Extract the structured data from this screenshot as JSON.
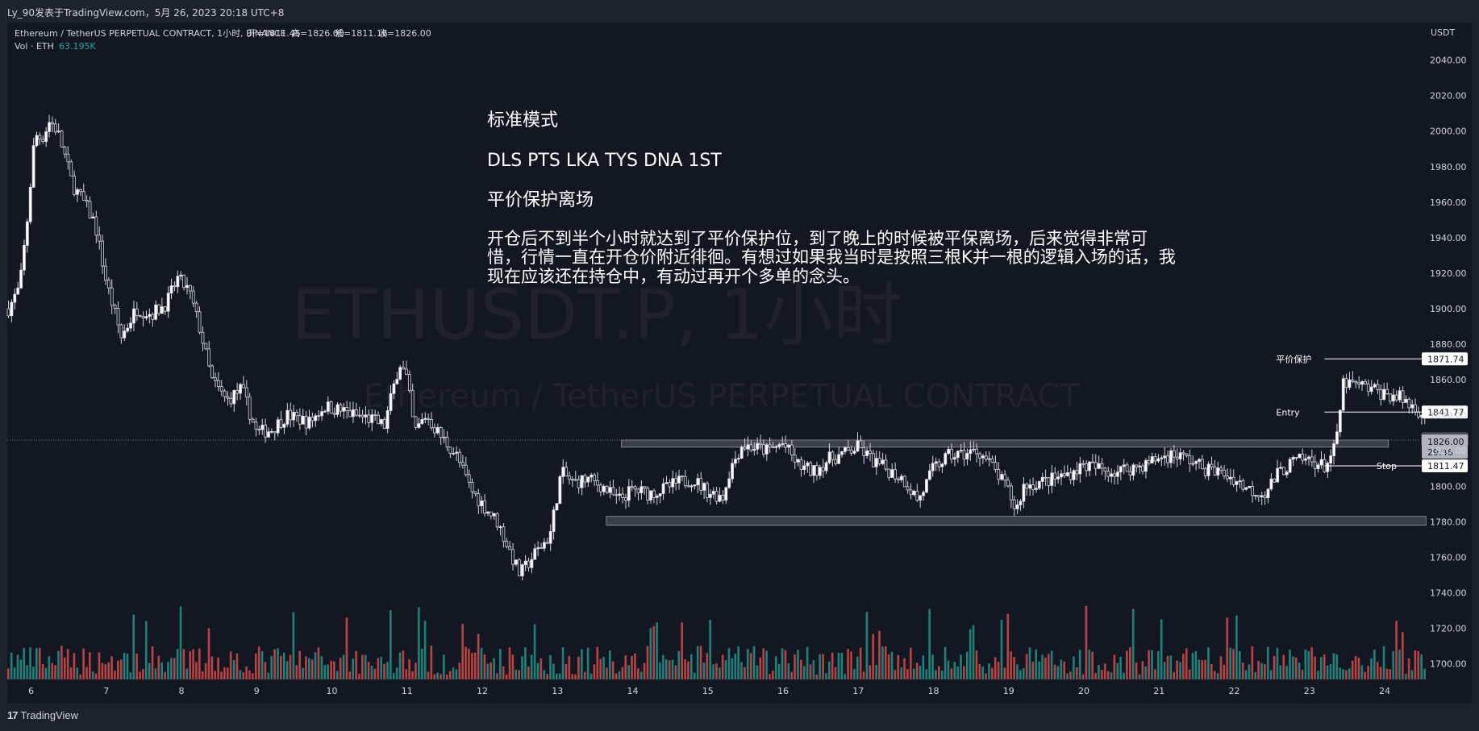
{
  "header": {
    "publisher": "Ly_90发表于TradingView.com，5月 26, 2023 20:18 UTC+8",
    "symbol_desc": "Ethereum / TetherUS PERPETUAL CONTRACT, 1小时, BINANCE",
    "ohlc": [
      {
        "label": "开",
        "value": "=1811.45"
      },
      {
        "label": "高",
        "value": "=1826.00"
      },
      {
        "label": "低",
        "value": "=1811.16"
      },
      {
        "label": "收",
        "value": "=1826.00"
      }
    ],
    "vol_label": "Vol · ETH",
    "vol_value": "63.195K"
  },
  "watermark": {
    "symbol": "ETHUSDT.P, 1小时",
    "name": "Ethereum / TetherUS PERPETUAL CONTRACT"
  },
  "annotation": {
    "line1": "标准模式",
    "line2": "DLS PTS  LKA  TYS DNA 1ST",
    "line3": "平价保护离场",
    "body": "开仓后不到半个小时就达到了平价保护位，到了晚上的时候被平保离场，后来觉得非常可惜，行情一直在开仓价附近徘徊。有想过如果我当时是按照三根K并一根的逻辑入场的话，我现在应该还在持仓中，有动过再开个多单的念头。"
  },
  "footer": {
    "brand": "TradingView"
  },
  "chart_data": {
    "type": "candlestick",
    "title": "Ethereum / TetherUS PERPETUAL CONTRACT, 1小时, BINANCE",
    "currency": "USDT",
    "y_ticks": [
      "2040.00",
      "2020.00",
      "2000.00",
      "1980.00",
      "1960.00",
      "1940.00",
      "1920.00",
      "1900.00",
      "1880.00",
      "1860.00",
      "1840.00",
      "1820.00",
      "1800.00",
      "1780.00",
      "1760.00",
      "1740.00",
      "1720.00",
      "1700.00"
    ],
    "y_range": [
      1692,
      2046
    ],
    "x_ticks": [
      "6",
      "7",
      "8",
      "9",
      "10",
      "11",
      "12",
      "13",
      "14",
      "15",
      "16",
      "17",
      "18",
      "19",
      "20",
      "21",
      "22",
      "23",
      "24"
    ],
    "x_range_days": [
      5.7,
      24.55
    ],
    "close_path": [
      [
        5.7,
        1900
      ],
      [
        5.85,
        1912
      ],
      [
        5.95,
        1950
      ],
      [
        6.05,
        1998
      ],
      [
        6.15,
        1996
      ],
      [
        6.25,
        2006
      ],
      [
        6.35,
        2000
      ],
      [
        6.45,
        1986
      ],
      [
        6.55,
        1970
      ],
      [
        6.7,
        1960
      ],
      [
        6.85,
        1948
      ],
      [
        7.0,
        1915
      ],
      [
        7.2,
        1884
      ],
      [
        7.4,
        1900
      ],
      [
        7.6,
        1897
      ],
      [
        7.8,
        1903
      ],
      [
        7.95,
        1917
      ],
      [
        8.1,
        1910
      ],
      [
        8.25,
        1888
      ],
      [
        8.4,
        1860
      ],
      [
        8.6,
        1848
      ],
      [
        8.8,
        1855
      ],
      [
        9.0,
        1830
      ],
      [
        9.2,
        1832
      ],
      [
        9.4,
        1840
      ],
      [
        9.7,
        1836
      ],
      [
        9.9,
        1845
      ],
      [
        10.1,
        1843
      ],
      [
        10.3,
        1840
      ],
      [
        10.5,
        1838
      ],
      [
        10.7,
        1834
      ],
      [
        10.9,
        1870
      ],
      [
        11.0,
        1860
      ],
      [
        11.1,
        1830
      ],
      [
        11.25,
        1840
      ],
      [
        11.45,
        1828
      ],
      [
        11.65,
        1818
      ],
      [
        11.85,
        1798
      ],
      [
        12.0,
        1790
      ],
      [
        12.2,
        1780
      ],
      [
        12.35,
        1765
      ],
      [
        12.5,
        1750
      ],
      [
        12.7,
        1762
      ],
      [
        12.9,
        1772
      ],
      [
        13.05,
        1808
      ],
      [
        13.2,
        1802
      ],
      [
        13.4,
        1804
      ],
      [
        13.6,
        1800
      ],
      [
        13.8,
        1792
      ],
      [
        14.0,
        1798
      ],
      [
        14.2,
        1796
      ],
      [
        14.4,
        1798
      ],
      [
        14.6,
        1802
      ],
      [
        14.8,
        1804
      ],
      [
        15.0,
        1797
      ],
      [
        15.2,
        1794
      ],
      [
        15.3,
        1810
      ],
      [
        15.45,
        1823
      ],
      [
        15.6,
        1822
      ],
      [
        15.8,
        1820
      ],
      [
        16.0,
        1824
      ],
      [
        16.2,
        1812
      ],
      [
        16.4,
        1808
      ],
      [
        16.6,
        1815
      ],
      [
        16.8,
        1818
      ],
      [
        17.0,
        1822
      ],
      [
        17.2,
        1814
      ],
      [
        17.4,
        1809
      ],
      [
        17.6,
        1804
      ],
      [
        17.8,
        1792
      ],
      [
        18.0,
        1810
      ],
      [
        18.2,
        1817
      ],
      [
        18.4,
        1818
      ],
      [
        18.6,
        1820
      ],
      [
        18.8,
        1810
      ],
      [
        19.0,
        1797
      ],
      [
        19.1,
        1786
      ],
      [
        19.2,
        1800
      ],
      [
        19.4,
        1802
      ],
      [
        19.6,
        1804
      ],
      [
        19.8,
        1807
      ],
      [
        20.0,
        1812
      ],
      [
        20.2,
        1810
      ],
      [
        20.4,
        1808
      ],
      [
        20.6,
        1810
      ],
      [
        20.8,
        1812
      ],
      [
        21.0,
        1816
      ],
      [
        21.2,
        1818
      ],
      [
        21.4,
        1815
      ],
      [
        21.6,
        1810
      ],
      [
        21.8,
        1808
      ],
      [
        22.0,
        1804
      ],
      [
        22.2,
        1798
      ],
      [
        22.4,
        1796
      ],
      [
        22.6,
        1808
      ],
      [
        22.8,
        1814
      ],
      [
        23.0,
        1815
      ],
      [
        23.2,
        1811
      ],
      [
        23.35,
        1822
      ],
      [
        23.45,
        1858
      ],
      [
        23.6,
        1857
      ],
      [
        23.8,
        1855
      ],
      [
        24.0,
        1852
      ],
      [
        24.2,
        1850
      ],
      [
        24.4,
        1844
      ],
      [
        24.52,
        1841
      ]
    ],
    "zones": [
      {
        "day_start": 13.85,
        "day_end": 24.05,
        "low": 1822,
        "high": 1826
      },
      {
        "day_start": 13.65,
        "day_end": 24.55,
        "low": 1778,
        "high": 1783
      }
    ],
    "levels": [
      {
        "label": "平价保护",
        "value": "1871.74",
        "price": 1871.74,
        "day_start": 23.2
      },
      {
        "label": "Entry",
        "value": "1841.77",
        "price": 1841.77,
        "day_start": 23.2
      },
      {
        "label": "Stop",
        "value": "1811.47",
        "price": 1811.47,
        "day_start": 23.2
      }
    ],
    "price_tags": [
      {
        "value": "1826.38",
        "price": 1826.38
      },
      {
        "value": "1826.00",
        "sub": "29:46",
        "price": 1826.0
      }
    ],
    "colors": {
      "up": "#ffffff",
      "down": "#ffffff",
      "vol_up": "#26a69a",
      "vol_down": "#ef5350"
    }
  }
}
